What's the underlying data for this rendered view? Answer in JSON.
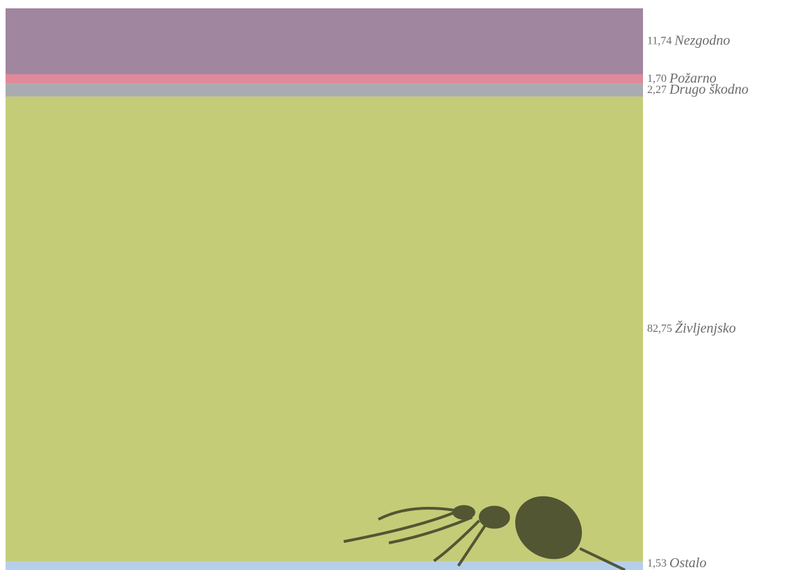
{
  "chart_data": {
    "type": "bar",
    "stacked": true,
    "ylim": [
      0,
      100
    ],
    "series": [
      {
        "name": "Nezgodno",
        "color": "#a0869f",
        "values": [
          11.74
        ],
        "value_labels": [
          "11,74"
        ]
      },
      {
        "name": "Požarno",
        "color": "#e0899a",
        "values": [
          1.7
        ],
        "value_labels": [
          "1,70"
        ]
      },
      {
        "name": "Drugo škodno",
        "color": "#a9abb0",
        "values": [
          2.27
        ],
        "value_labels": [
          "2,27"
        ]
      },
      {
        "name": "Življenjsko",
        "color": "#c5cc78",
        "values": [
          82.75
        ],
        "value_labels": [
          "82,75"
        ]
      },
      {
        "name": "Ostalo",
        "color": "#b6cfe9",
        "values": [
          1.53
        ],
        "value_labels": [
          "1,53"
        ]
      }
    ]
  }
}
